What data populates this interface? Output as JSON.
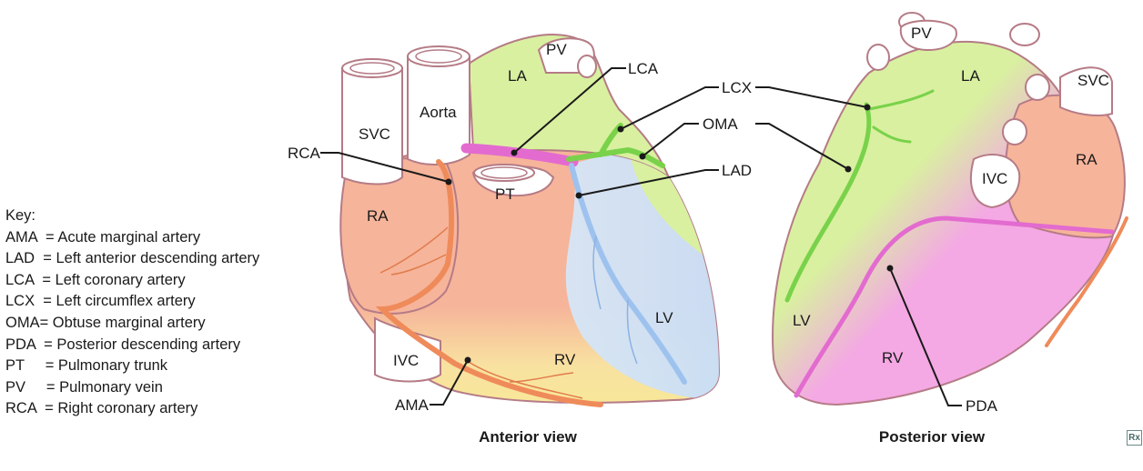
{
  "key": {
    "title": "Key:",
    "entries": [
      "AMA  = Acute marginal artery",
      "LAD  = Left anterior descending artery",
      "LCA  = Left coronary artery",
      "LCX  = Left circumflex artery",
      "OMA= Obtuse marginal artery",
      "PDA  = Posterior descending artery",
      "PT     = Pulmonary trunk",
      "PV     = Pulmonary vein",
      "RCA  = Right coronary artery"
    ]
  },
  "anterior": {
    "caption": "Anterior view",
    "labels": {
      "svc": "SVC",
      "aorta": "Aorta",
      "la": "LA",
      "pv": "PV",
      "ra": "RA",
      "pt": "PT",
      "ivc": "IVC",
      "rv": "RV",
      "lv": "LV"
    }
  },
  "posterior": {
    "caption": "Posterior view",
    "labels": {
      "pv": "PV",
      "la": "LA",
      "svc": "SVC",
      "ra": "RA",
      "ivc": "IVC",
      "lv": "LV",
      "rv": "RV"
    }
  },
  "callouts": {
    "lca": "LCA",
    "lcx": "LCX",
    "oma": "OMA",
    "lad": "LAD",
    "rca": "RCA",
    "ama": "AMA",
    "pda": "PDA"
  },
  "colors": {
    "right_atrium_ventricle": "#f6b49a",
    "left_atrium": "#d9f0a0",
    "left_ventricle": "#cfe3f7",
    "inferior_yellow": "#f8e79a",
    "posterior_pink": "#f4a8e4",
    "lca_lad_pink": "#e36bd0",
    "lcx_green": "#79d24a",
    "rca_orange": "#ef8b5a",
    "lad_blue": "#9ec2ee"
  },
  "logo": "Rx"
}
